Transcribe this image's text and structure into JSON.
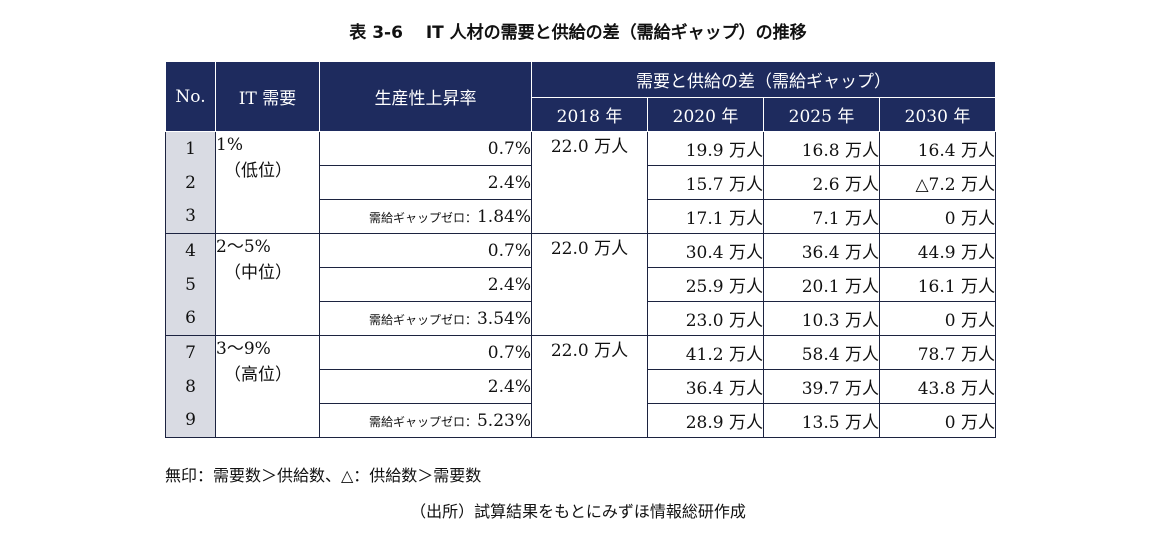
{
  "title": "表 3-6　 IT 人材の需要と供給の差（需給ギャップ）の推移",
  "header": {
    "no": "No.",
    "demand": "IT 需要",
    "rate": "生産性上昇率",
    "gap": "需要と供給の差（需給ギャップ）",
    "years": [
      "2018 年",
      "2020 年",
      "2025 年",
      "2030 年"
    ]
  },
  "groups": [
    {
      "demand_pct": "1%",
      "demand_level": "（低位）",
      "y2018": "22.0 万人",
      "rows": [
        {
          "no": "1",
          "rate_note": "",
          "rate": "0.7%",
          "v2020": "19.9 万人",
          "v2025": "16.8 万人",
          "v2030": "16.4 万人"
        },
        {
          "no": "2",
          "rate_note": "",
          "rate": "2.4%",
          "v2020": "15.7 万人",
          "v2025": "2.6 万人",
          "v2030": "△7.2 万人"
        },
        {
          "no": "3",
          "rate_note": "需給ギャップゼロ：",
          "rate": "1.84%",
          "v2020": "17.1 万人",
          "v2025": "7.1 万人",
          "v2030": "0 万人"
        }
      ]
    },
    {
      "demand_pct": "2〜5%",
      "demand_level": "（中位）",
      "y2018": "22.0 万人",
      "rows": [
        {
          "no": "4",
          "rate_note": "",
          "rate": "0.7%",
          "v2020": "30.4 万人",
          "v2025": "36.4 万人",
          "v2030": "44.9 万人"
        },
        {
          "no": "5",
          "rate_note": "",
          "rate": "2.4%",
          "v2020": "25.9 万人",
          "v2025": "20.1 万人",
          "v2030": "16.1 万人"
        },
        {
          "no": "6",
          "rate_note": "需給ギャップゼロ：",
          "rate": "3.54%",
          "v2020": "23.0 万人",
          "v2025": "10.3 万人",
          "v2030": "0 万人"
        }
      ]
    },
    {
      "demand_pct": "3〜9%",
      "demand_level": "（高位）",
      "y2018": "22.0 万人",
      "rows": [
        {
          "no": "7",
          "rate_note": "",
          "rate": "0.7%",
          "v2020": "41.2 万人",
          "v2025": "58.4 万人",
          "v2030": "78.7 万人"
        },
        {
          "no": "8",
          "rate_note": "",
          "rate": "2.4%",
          "v2020": "36.4 万人",
          "v2025": "39.7 万人",
          "v2030": "43.8 万人"
        },
        {
          "no": "9",
          "rate_note": "需給ギャップゼロ：",
          "rate": "5.23%",
          "v2020": "28.9 万人",
          "v2025": "13.5 万人",
          "v2030": "0 万人"
        }
      ]
    }
  ],
  "footnote": "無印：需要数＞供給数、△：供給数＞需要数",
  "source": "（出所）試算結果をもとにみずほ情報総研作成"
}
